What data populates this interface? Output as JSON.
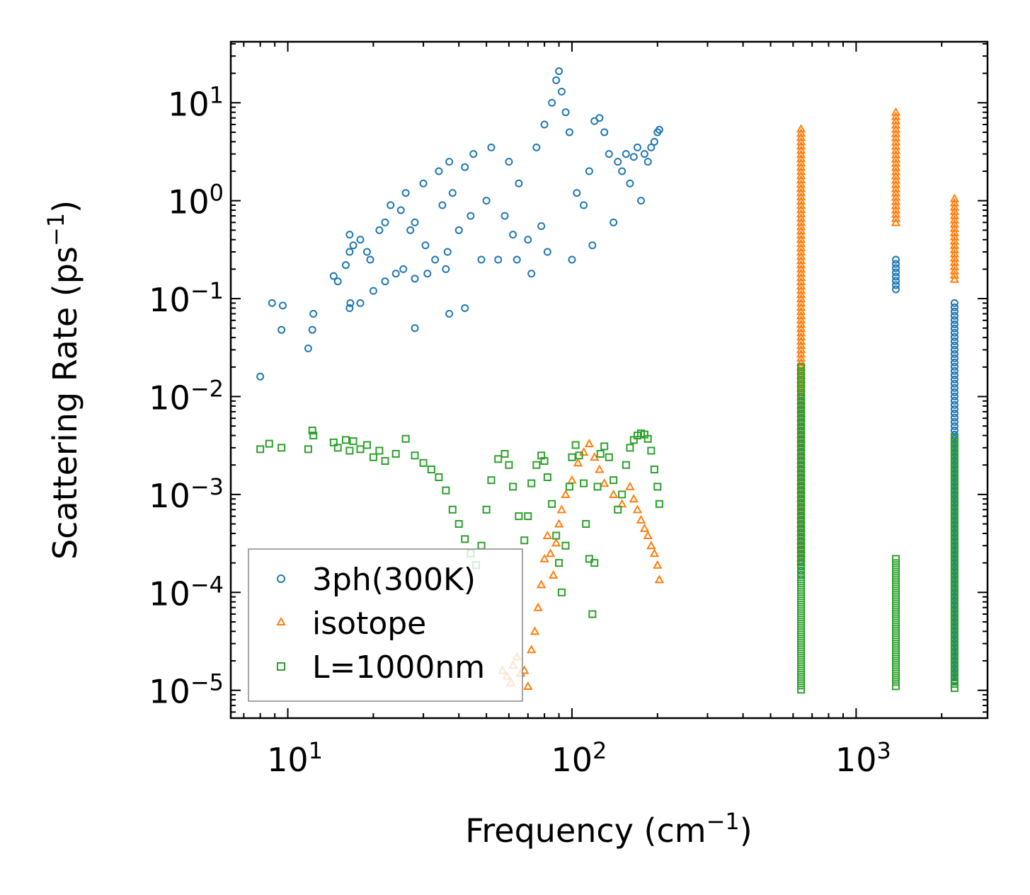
{
  "chart_data": {
    "type": "scatter",
    "xscale": "log",
    "yscale": "log",
    "xlim": [
      6.3,
      2900
    ],
    "ylim": [
      5.2e-06,
      42
    ],
    "xlabel": "Frequency (cm",
    "xlabel_sup": "−1",
    "xlabel_end": ")",
    "ylabel": "Scattering Rate (ps",
    "ylabel_sup": "−1",
    "ylabel_end": ")",
    "xticks": [
      {
        "value": 10,
        "base": "10",
        "exp": "1"
      },
      {
        "value": 100,
        "base": "10",
        "exp": "2"
      },
      {
        "value": 1000,
        "base": "10",
        "exp": "3"
      }
    ],
    "yticks": [
      {
        "value": 1e-05,
        "base": "10",
        "exp": "−5"
      },
      {
        "value": 0.0001,
        "base": "10",
        "exp": "−4"
      },
      {
        "value": 0.001,
        "base": "10",
        "exp": "−3"
      },
      {
        "value": 0.01,
        "base": "10",
        "exp": "−2"
      },
      {
        "value": 0.1,
        "base": "10",
        "exp": "−1"
      },
      {
        "value": 1,
        "base": "10",
        "exp": "0"
      },
      {
        "value": 10,
        "base": "10",
        "exp": "1"
      }
    ],
    "legend_position": "lower-left",
    "series": [
      {
        "name": "3ph(300K)",
        "marker": "circle",
        "color": "#1f77b4",
        "points": [
          [
            8,
            0.016
          ],
          [
            8.8,
            0.09
          ],
          [
            9.5,
            0.048
          ],
          [
            9.6,
            0.085
          ],
          [
            11.8,
            0.031
          ],
          [
            12.2,
            0.048
          ],
          [
            12.3,
            0.07
          ],
          [
            14.5,
            0.17
          ],
          [
            15,
            0.15
          ],
          [
            16,
            0.22
          ],
          [
            16.5,
            0.3
          ],
          [
            16.5,
            0.45
          ],
          [
            16.5,
            0.08
          ],
          [
            16.6,
            0.09
          ],
          [
            17,
            0.35
          ],
          [
            18,
            0.4
          ],
          [
            18,
            0.09
          ],
          [
            19,
            0.3
          ],
          [
            19.5,
            0.25
          ],
          [
            20,
            0.12
          ],
          [
            21,
            0.5
          ],
          [
            22,
            0.6
          ],
          [
            22,
            0.15
          ],
          [
            23,
            0.9
          ],
          [
            24,
            0.18
          ],
          [
            25,
            0.8
          ],
          [
            25.5,
            0.2
          ],
          [
            26,
            1.2
          ],
          [
            27,
            0.5
          ],
          [
            28,
            0.05
          ],
          [
            28,
            0.6
          ],
          [
            28,
            0.16
          ],
          [
            30,
            1.5
          ],
          [
            30.5,
            0.35
          ],
          [
            31,
            0.18
          ],
          [
            33,
            0.25
          ],
          [
            34,
            2.0
          ],
          [
            35,
            0.9
          ],
          [
            36,
            0.2
          ],
          [
            36.5,
            0.3
          ],
          [
            37,
            2.5
          ],
          [
            37,
            0.07
          ],
          [
            38,
            1.2
          ],
          [
            40,
            0.5
          ],
          [
            42,
            2.2
          ],
          [
            42,
            0.08
          ],
          [
            44,
            0.7
          ],
          [
            45,
            3.0
          ],
          [
            48,
            0.25
          ],
          [
            50,
            1.0
          ],
          [
            52,
            3.5
          ],
          [
            55,
            0.25
          ],
          [
            58,
            0.7
          ],
          [
            60,
            2.5
          ],
          [
            62,
            0.45
          ],
          [
            64,
            0.25
          ],
          [
            65,
            1.5
          ],
          [
            70,
            0.4
          ],
          [
            72,
            0.18
          ],
          [
            75,
            3.5
          ],
          [
            78,
            0.55
          ],
          [
            80,
            6.0
          ],
          [
            82,
            0.3
          ],
          [
            85,
            10
          ],
          [
            88,
            17
          ],
          [
            90,
            21
          ],
          [
            92,
            13
          ],
          [
            95,
            8
          ],
          [
            98,
            5
          ],
          [
            100,
            0.25
          ],
          [
            104,
            1.2
          ],
          [
            110,
            0.9
          ],
          [
            115,
            2.0
          ],
          [
            118,
            0.35
          ],
          [
            120,
            6.5
          ],
          [
            125,
            7.0
          ],
          [
            130,
            5.0
          ],
          [
            135,
            3.0
          ],
          [
            140,
            0.6
          ],
          [
            145,
            2.5
          ],
          [
            150,
            2.0
          ],
          [
            155,
            3.0
          ],
          [
            160,
            1.5
          ],
          [
            165,
            2.8
          ],
          [
            170,
            3.5
          ],
          [
            175,
            1.0
          ],
          [
            180,
            3.0
          ],
          [
            185,
            2.5
          ],
          [
            190,
            3.5
          ],
          [
            195,
            4.0
          ],
          [
            200,
            5.0
          ],
          [
            203,
            5.3
          ]
        ]
      },
      {
        "name": "isotope",
        "marker": "triangle",
        "color": "#ff7f0e",
        "points": [
          [
            57,
            1.6e-05
          ],
          [
            59,
            1.4e-05
          ],
          [
            61,
            1.2e-05
          ],
          [
            62,
            1.8e-05
          ],
          [
            64,
            2.2e-05
          ],
          [
            66,
            1.5e-05
          ],
          [
            68,
            1.6e-05
          ],
          [
            70,
            1.1e-05
          ],
          [
            72,
            2.6e-05
          ],
          [
            74,
            4e-05
          ],
          [
            76,
            7e-05
          ],
          [
            78,
            0.00012
          ],
          [
            80,
            0.00022
          ],
          [
            82,
            0.00038
          ],
          [
            84,
            0.00025
          ],
          [
            86,
            0.00015
          ],
          [
            88,
            0.00032
          ],
          [
            90,
            0.0005
          ],
          [
            92,
            0.0007
          ],
          [
            95,
            0.001
          ],
          [
            100,
            0.0014
          ],
          [
            105,
            0.0021
          ],
          [
            110,
            0.0027
          ],
          [
            115,
            0.0033
          ],
          [
            120,
            0.0024
          ],
          [
            125,
            0.0018
          ],
          [
            130,
            0.0013
          ],
          [
            140,
            0.001
          ],
          [
            150,
            0.0008
          ],
          [
            160,
            0.0012
          ],
          [
            165,
            0.0009
          ],
          [
            170,
            0.0007
          ],
          [
            175,
            0.00055
          ],
          [
            180,
            0.00045
          ],
          [
            185,
            0.00038
          ],
          [
            190,
            0.0003
          ],
          [
            195,
            0.00025
          ],
          [
            200,
            0.00019
          ],
          [
            203,
            0.000135
          ]
        ]
      },
      {
        "name": "L=1000nm",
        "marker": "square",
        "color": "#2ca02c",
        "points": [
          [
            8,
            0.0029
          ],
          [
            8.6,
            0.0033
          ],
          [
            9.5,
            0.003
          ],
          [
            11.8,
            0.0029
          ],
          [
            12.2,
            0.0045
          ],
          [
            12.3,
            0.004
          ],
          [
            14.5,
            0.0034
          ],
          [
            15,
            0.003
          ],
          [
            16,
            0.0036
          ],
          [
            16.5,
            0.0028
          ],
          [
            17,
            0.0035
          ],
          [
            18,
            0.0029
          ],
          [
            19,
            0.0032
          ],
          [
            20,
            0.0024
          ],
          [
            21,
            0.0028
          ],
          [
            22,
            0.0022
          ],
          [
            24,
            0.0026
          ],
          [
            26,
            0.0037
          ],
          [
            28,
            0.0025
          ],
          [
            30,
            0.0021
          ],
          [
            32,
            0.0018
          ],
          [
            34,
            0.0015
          ],
          [
            36,
            0.0011
          ],
          [
            38,
            0.0007
          ],
          [
            40,
            0.0005
          ],
          [
            42,
            0.00035
          ],
          [
            44,
            0.00025
          ],
          [
            46,
            0.00019
          ],
          [
            48,
            0.0003
          ],
          [
            50,
            0.0007
          ],
          [
            52,
            0.0014
          ],
          [
            55,
            0.0023
          ],
          [
            58,
            0.0026
          ],
          [
            60,
            0.002
          ],
          [
            62,
            0.0012
          ],
          [
            65,
            0.0006
          ],
          [
            68,
            0.00034
          ],
          [
            70,
            0.0006
          ],
          [
            72,
            0.0013
          ],
          [
            75,
            0.002
          ],
          [
            78,
            0.0025
          ],
          [
            80,
            0.0022
          ],
          [
            82,
            0.0015
          ],
          [
            85,
            0.0008
          ],
          [
            88,
            0.00038
          ],
          [
            90,
            0.0002
          ],
          [
            92,
            0.0001
          ],
          [
            95,
            0.0003
          ],
          [
            98,
            0.0012
          ],
          [
            100,
            0.0024
          ],
          [
            103,
            0.0032
          ],
          [
            106,
            0.0025
          ],
          [
            110,
            0.0013
          ],
          [
            112,
            0.0005
          ],
          [
            115,
            0.00022
          ],
          [
            118,
            6e-05
          ],
          [
            120,
            0.0002
          ],
          [
            123,
            0.0012
          ],
          [
            126,
            0.0026
          ],
          [
            130,
            0.0031
          ],
          [
            135,
            0.0024
          ],
          [
            140,
            0.0014
          ],
          [
            145,
            0.0007
          ],
          [
            150,
            0.001
          ],
          [
            155,
            0.002
          ],
          [
            160,
            0.003
          ],
          [
            165,
            0.0036
          ],
          [
            170,
            0.004
          ],
          [
            175,
            0.0042
          ],
          [
            180,
            0.0041
          ],
          [
            185,
            0.0037
          ],
          [
            190,
            0.0028
          ],
          [
            195,
            0.0018
          ],
          [
            200,
            0.0012
          ],
          [
            203,
            0.0008
          ]
        ]
      }
    ],
    "vertical_bands": [
      {
        "series": "isotope",
        "x": 640,
        "ymin": 0.0002,
        "ymax": 5.4
      },
      {
        "series": "3ph(300K)",
        "x": 640,
        "ymin": 0.00015,
        "ymax": 0.01
      },
      {
        "series": "L=1000nm",
        "x": 640,
        "ymin": 1e-05,
        "ymax": 0.02
      },
      {
        "series": "isotope",
        "x": 1380,
        "ymin": 0.55,
        "ymax": 8.0
      },
      {
        "series": "3ph(300K)",
        "x": 1380,
        "ymin": 0.12,
        "ymax": 0.25
      },
      {
        "series": "L=1000nm",
        "x": 1380,
        "ymin": 1e-05,
        "ymax": 0.00022
      },
      {
        "series": "isotope",
        "x": 2220,
        "ymin": 0.15,
        "ymax": 1.05
      },
      {
        "series": "3ph(300K)",
        "x": 2220,
        "ymin": 1.2e-05,
        "ymax": 0.09
      },
      {
        "series": "L=1000nm",
        "x": 2220,
        "ymin": 1e-05,
        "ymax": 0.0038
      }
    ]
  }
}
